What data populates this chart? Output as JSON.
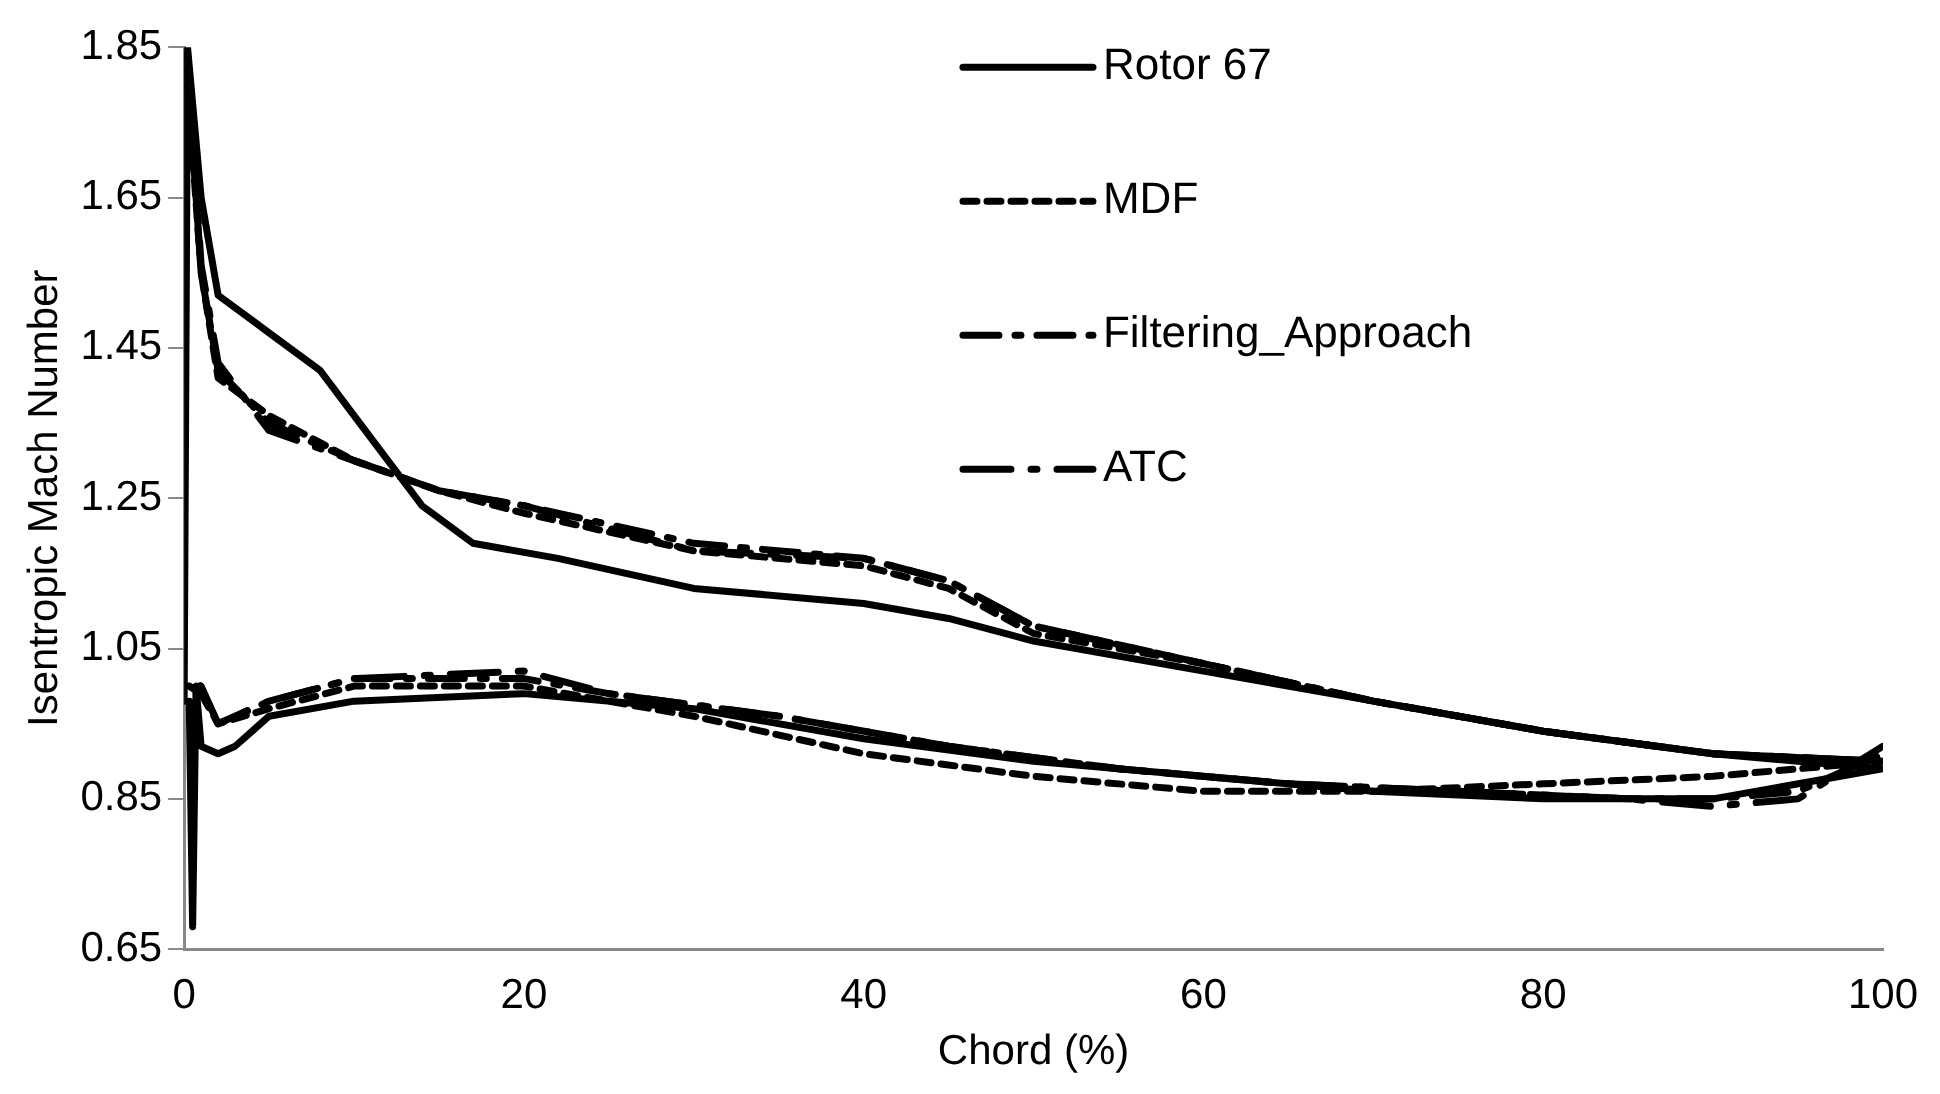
{
  "chart_data": {
    "type": "line",
    "xlabel": "Chord (%)",
    "ylabel": "Isentropic Mach Number",
    "xlim": [
      0,
      100
    ],
    "xticks": [
      0,
      20,
      40,
      60,
      80,
      100
    ],
    "ylim": [
      0.65,
      1.85
    ],
    "yticks": [
      0.65,
      0.85,
      1.05,
      1.25,
      1.45,
      1.65,
      1.85
    ],
    "grid": false,
    "legend": "top right",
    "marker": "none",
    "series": [
      {
        "name": "Rotor 67",
        "color": "#000000",
        "line_style": "solid",
        "x": [
          0,
          0.2,
          1,
          2,
          5,
          8,
          11,
          14,
          17,
          22,
          30,
          40,
          45,
          50,
          60,
          70,
          80,
          90,
          100,
          100,
          90,
          80,
          70,
          60,
          50,
          40,
          30,
          20,
          10,
          5,
          3,
          2,
          1,
          0.7,
          0.5,
          0.3
        ],
        "values": [
          0.98,
          1.85,
          1.65,
          1.52,
          1.47,
          1.42,
          1.33,
          1.24,
          1.19,
          1.17,
          1.13,
          1.11,
          1.09,
          1.06,
          1.02,
          0.98,
          0.94,
          0.91,
          0.89,
          0.89,
          0.85,
          0.85,
          0.86,
          0.88,
          0.9,
          0.93,
          0.97,
          0.99,
          0.98,
          0.96,
          0.92,
          0.91,
          0.92,
          1.0,
          0.68,
          0.98
        ]
      },
      {
        "name": "MDF",
        "color": "#000000",
        "line_style": "dashed",
        "x": [
          0.2,
          1,
          2,
          5,
          10,
          15,
          20,
          30,
          40,
          45,
          50,
          60,
          70,
          80,
          90,
          100,
          100,
          95,
          90,
          80,
          70,
          60,
          50,
          40,
          30,
          20,
          10,
          5,
          2,
          1,
          0.3
        ],
        "values": [
          1.8,
          1.55,
          1.41,
          1.36,
          1.3,
          1.26,
          1.23,
          1.18,
          1.16,
          1.13,
          1.07,
          1.03,
          0.98,
          0.94,
          0.91,
          0.9,
          0.9,
          0.89,
          0.88,
          0.87,
          0.86,
          0.86,
          0.88,
          0.91,
          0.96,
          1.0,
          1.0,
          0.97,
          0.95,
          0.99,
          1.0
        ]
      },
      {
        "name": "Filtering_Approach",
        "color": "#000000",
        "line_style": "dashed",
        "x": [
          0.2,
          1,
          2,
          5,
          10,
          15,
          20,
          30,
          40,
          45,
          50,
          60,
          70,
          80,
          90,
          100,
          100,
          95,
          90,
          85,
          75,
          65,
          55,
          45,
          35,
          25,
          20,
          10,
          5,
          2,
          1,
          0.3
        ],
        "values": [
          1.82,
          1.55,
          1.42,
          1.35,
          1.3,
          1.26,
          1.24,
          1.19,
          1.17,
          1.14,
          1.08,
          1.03,
          0.98,
          0.94,
          0.91,
          0.9,
          0.91,
          0.86,
          0.85,
          0.85,
          0.86,
          0.87,
          0.89,
          0.92,
          0.96,
          0.99,
          1.01,
          1.01,
          0.98,
          0.95,
          0.99,
          1.0
        ]
      },
      {
        "name": "ATC",
        "color": "#000000",
        "line_style": "dashed",
        "x": [
          0.2,
          1,
          2,
          5,
          10,
          15,
          20,
          30,
          40,
          45,
          50,
          60,
          70,
          80,
          90,
          100,
          100,
          95,
          90,
          85,
          75,
          65,
          55,
          45,
          35,
          25,
          20,
          10,
          5,
          2,
          1,
          0.3
        ],
        "values": [
          1.84,
          1.56,
          1.43,
          1.34,
          1.3,
          1.26,
          1.24,
          1.18,
          1.17,
          1.14,
          1.08,
          1.03,
          0.98,
          0.94,
          0.91,
          0.9,
          0.92,
          0.85,
          0.84,
          0.85,
          0.86,
          0.87,
          0.89,
          0.92,
          0.96,
          0.99,
          1.02,
          1.01,
          0.98,
          0.95,
          1.0,
          1.01
        ]
      }
    ]
  }
}
